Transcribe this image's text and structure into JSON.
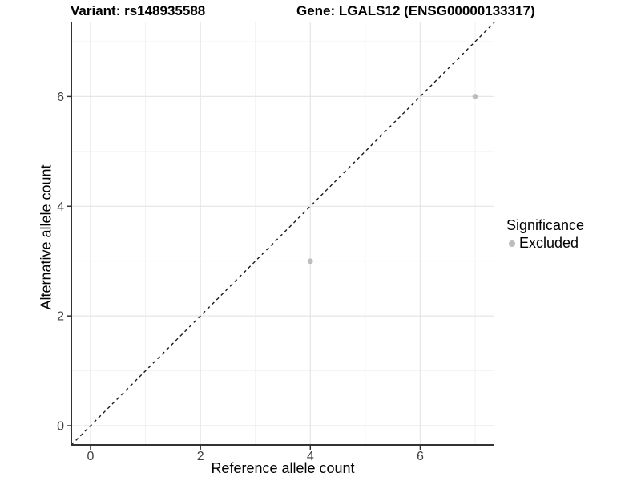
{
  "title": {
    "left": "Variant: rs148935588",
    "right": "Gene: LGALS12 (ENSG00000133317)"
  },
  "chart_data": {
    "type": "scatter",
    "title": "Variant: rs148935588   Gene: LGALS12 (ENSG00000133317)",
    "xlabel": "Reference allele count",
    "ylabel": "Alternative allele count",
    "xlim": [
      -0.35,
      7.35
    ],
    "ylim": [
      -0.35,
      7.35
    ],
    "xticks": [
      0,
      2,
      4,
      6
    ],
    "yticks": [
      0,
      2,
      4,
      6
    ],
    "minor_gridlines_x": [
      1,
      3,
      5,
      7
    ],
    "minor_gridlines_y": [
      1,
      3,
      5,
      7
    ],
    "grid": "on",
    "series": [
      {
        "name": "Excluded",
        "marker": "circle",
        "color": "#bdbdbd",
        "points": [
          {
            "x": 4,
            "y": 3
          },
          {
            "x": 7,
            "y": 6
          }
        ]
      }
    ],
    "reference_line": {
      "type": "identity",
      "slope": 1,
      "intercept": 0,
      "style": "dashed",
      "color": "#1a1a1a"
    },
    "legend": {
      "title": "Significance",
      "position": "right",
      "items": [
        {
          "label": "Excluded",
          "color": "#bdbdbd",
          "marker": "circle"
        }
      ]
    }
  },
  "colors": {
    "background": "#ffffff",
    "major_grid": "#e6e6e6",
    "minor_grid": "#f2f2f2",
    "axis_line": "#333333",
    "tick_mark": "#333333",
    "tick_label": "#404040",
    "point": "#bdbdbd",
    "dashed_line": "#1a1a1a"
  }
}
